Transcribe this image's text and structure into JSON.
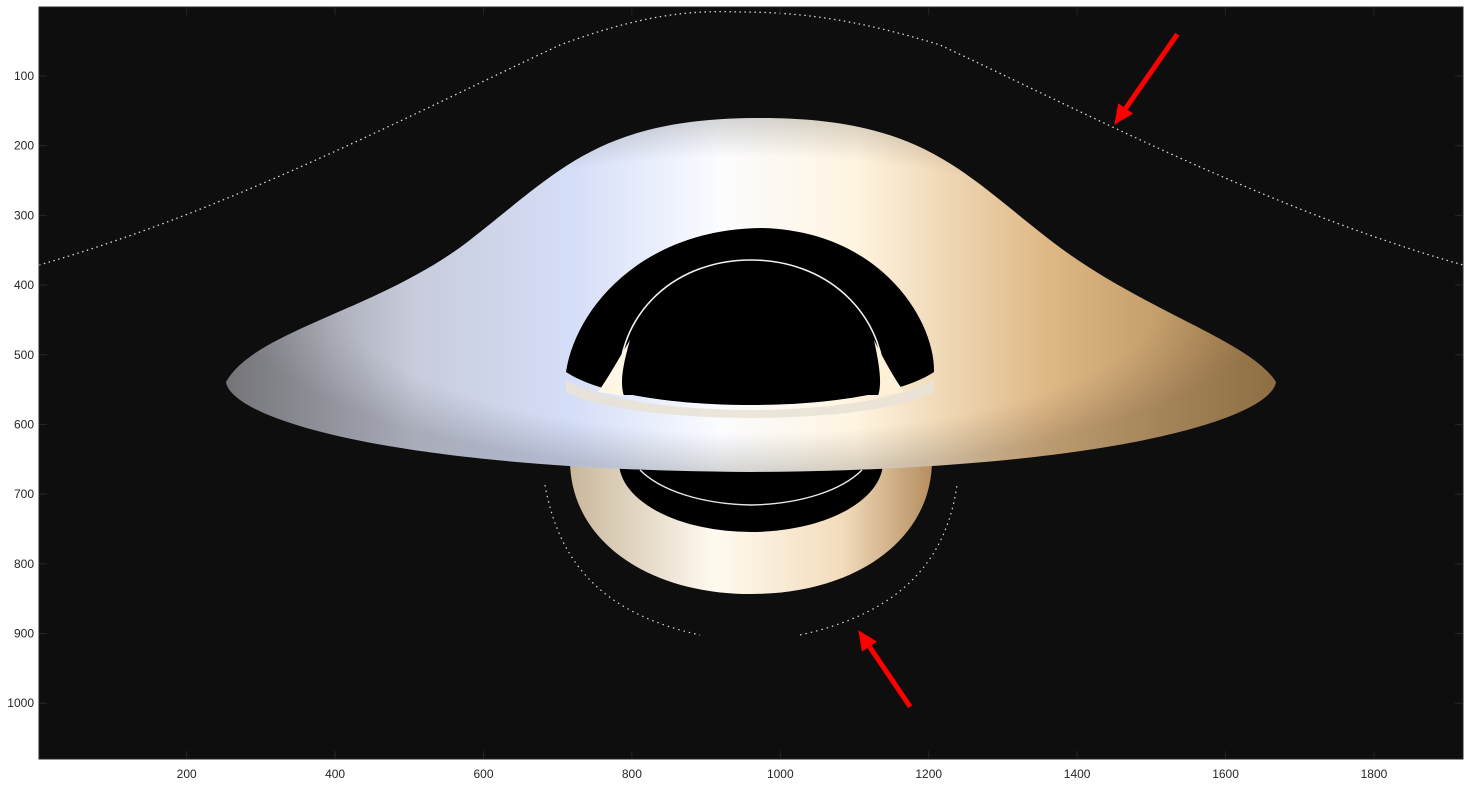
{
  "chart_data": {
    "type": "image",
    "xlim": [
      1,
      1920
    ],
    "ylim": [
      1,
      1080
    ],
    "y_direction": "reverse",
    "x_ticks": [
      "200",
      "400",
      "600",
      "800",
      "1000",
      "1200",
      "1400",
      "1600",
      "1800"
    ],
    "y_ticks": [
      "100",
      "200",
      "300",
      "400",
      "500",
      "600",
      "700",
      "800",
      "900",
      "1000"
    ],
    "background_color": "#0e0e0e",
    "shadow_color": "#000000",
    "disk_colors": {
      "approaching_side": "#cfd8f2",
      "receding_side": "#c9955c",
      "highlight": "#fff8ea"
    },
    "annotations": [
      {
        "type": "arrow",
        "color": "#ff0000",
        "tail": [
          1535,
          40
        ],
        "head": [
          1450,
          170
        ]
      },
      {
        "type": "arrow",
        "color": "#ff0000",
        "tail": [
          1175,
          1005
        ],
        "head": [
          1105,
          895
        ]
      }
    ]
  }
}
